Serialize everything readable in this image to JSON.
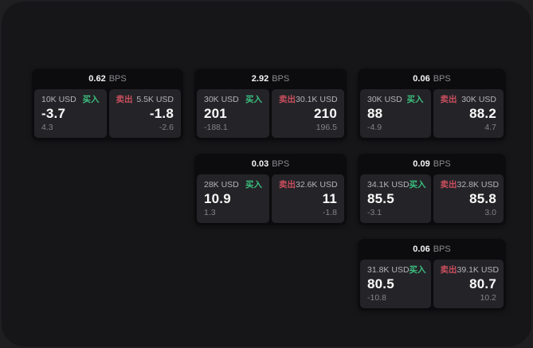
{
  "labels": {
    "bps_unit": "BPS",
    "buy": "买入",
    "sell": "卖出"
  },
  "colors": {
    "buy_green": "#3bbf7f",
    "sell_red": "#cb4e5e",
    "panel_bg": "#161618",
    "card_bg": "#0c0c0e",
    "pane_bg": "#242428"
  },
  "cards": [
    {
      "bps": "0.62",
      "buy": {
        "amount": "10K USD",
        "price": "-3.7",
        "sub": "4.3"
      },
      "sell": {
        "amount": "5.5K USD",
        "price": "-1.8",
        "sub": "-2.6"
      }
    },
    {
      "bps": "2.92",
      "buy": {
        "amount": "30K USD",
        "price": "201",
        "sub": "-188.1"
      },
      "sell": {
        "amount": "30.1K USD",
        "price": "210",
        "sub": "196.5"
      }
    },
    {
      "bps": "0.06",
      "buy": {
        "amount": "30K USD",
        "price": "88",
        "sub": "-4.9"
      },
      "sell": {
        "amount": "30K USD",
        "price": "88.2",
        "sub": "4.7"
      }
    },
    {
      "bps": "0.03",
      "buy": {
        "amount": "28K USD",
        "price": "10.9",
        "sub": "1.3"
      },
      "sell": {
        "amount": "32.6K USD",
        "price": "11",
        "sub": "-1.8"
      }
    },
    {
      "bps": "0.09",
      "buy": {
        "amount": "34.1K USD",
        "price": "85.5",
        "sub": "-3.1"
      },
      "sell": {
        "amount": "32.8K USD",
        "price": "85.8",
        "sub": "3.0"
      }
    },
    {
      "bps": "0.06",
      "buy": {
        "amount": "31.8K USD",
        "price": "80.5",
        "sub": "-10.8"
      },
      "sell": {
        "amount": "39.1K USD",
        "price": "80.7",
        "sub": "10.2"
      }
    }
  ]
}
